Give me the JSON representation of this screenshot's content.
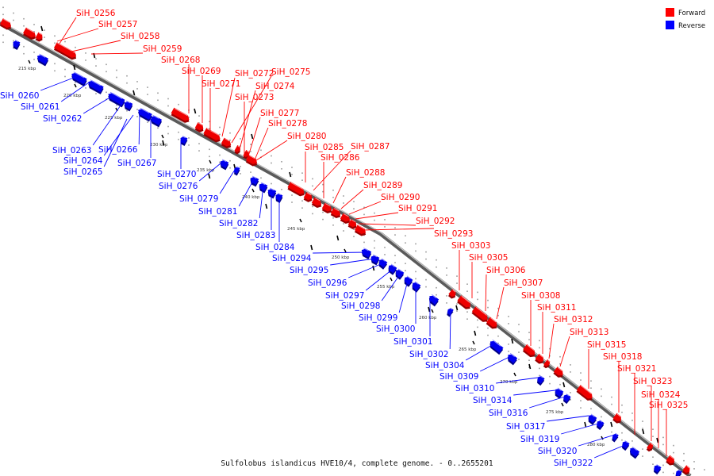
{
  "caption": "Sulfolobus islandicus HVE10/4, complete genome. - 0..2655201",
  "legend": {
    "forward_label": "Forward",
    "reverse_label": "Reverse",
    "forward_color": "#ff0000",
    "reverse_color": "#0000ff"
  },
  "label_colors": {
    "forward": "#ff0000",
    "reverse": "#0000ff"
  },
  "scale_ticks": [
    "215 kbp",
    "220 kbp",
    "225 kbp",
    "230 kbp",
    "235 kbp",
    "240 kbp",
    "245 kbp",
    "250 kbp",
    "255 kbp",
    "260 kbp",
    "265 kbp",
    "270 kbp",
    "275 kbp",
    "280 kbp"
  ],
  "forward_genes": [
    "SiH_0256",
    "SiH_0257",
    "SiH_0258",
    "SiH_0259",
    "SiH_0268",
    "SiH_0269",
    "SiH_0271",
    "SiH_0272",
    "SiH_0275",
    "SiH_0274",
    "SiH_0273",
    "SiH_0277",
    "SiH_0278",
    "SiH_0280",
    "SiH_0285",
    "SiH_0287",
    "SiH_0286",
    "SiH_0288",
    "SiH_0289",
    "SiH_0290",
    "SiH_0291",
    "SiH_0292",
    "SiH_0293",
    "SiH_0303",
    "SiH_0305",
    "SiH_0306",
    "SiH_0307",
    "SiH_0308",
    "SiH_0311",
    "SiH_0312",
    "SiH_0313",
    "SiH_0315",
    "SiH_0318",
    "SiH_0321",
    "SiH_0323",
    "SiH_0324",
    "SiH_0325"
  ],
  "reverse_genes": [
    "SiH_0260",
    "SiH_0261",
    "SiH_0262",
    "SiH_0263",
    "SiH_0266",
    "SiH_0264",
    "SiH_0265",
    "SiH_0267",
    "SiH_0270",
    "SiH_0276",
    "SiH_0279",
    "SiH_0281",
    "SiH_0282",
    "SiH_0283",
    "SiH_0284",
    "SiH_0294",
    "SiH_0295",
    "SiH_0296",
    "SiH_0297",
    "SiH_0298",
    "SiH_0299",
    "SiH_0300",
    "SiH_0301",
    "SiH_0302",
    "SiH_0304",
    "SiH_0309",
    "SiH_0310",
    "SiH_0314",
    "SiH_0316",
    "SiH_0317",
    "SiH_0319",
    "SiH_0320",
    "SiH_0322"
  ]
}
